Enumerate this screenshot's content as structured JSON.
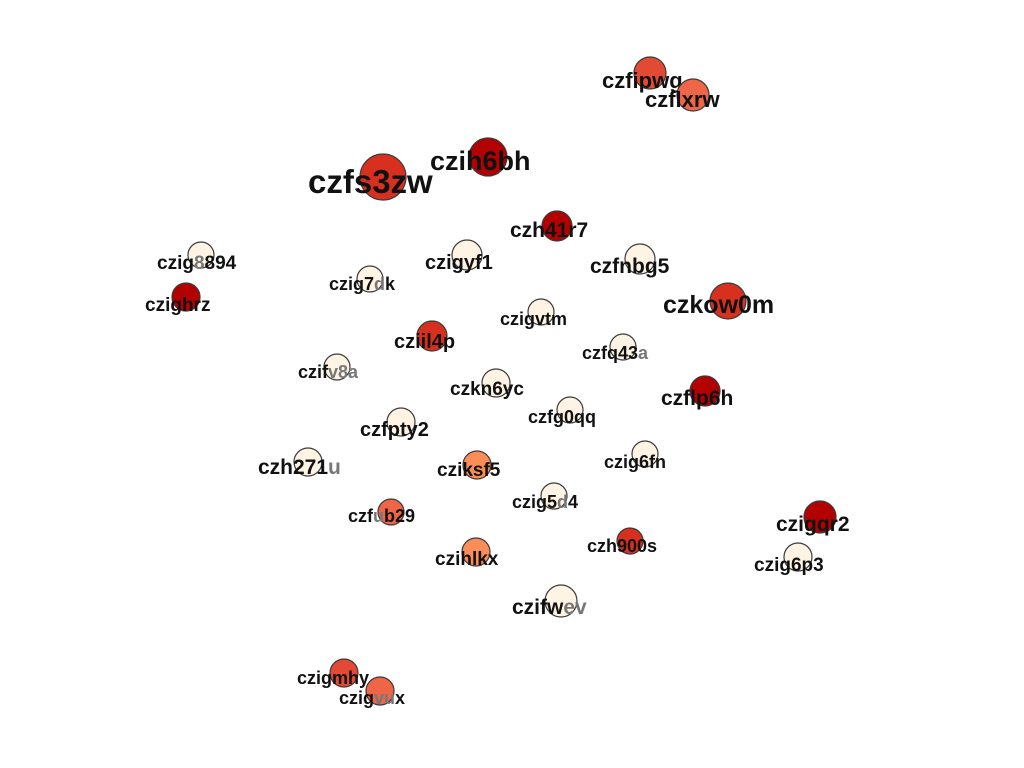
{
  "colors": {
    "dark_red": "#b30000",
    "red": "#d7301f",
    "orange_red": "#ef6548",
    "orange": "#fc8d59",
    "light_orange": "#fdbb84",
    "pale": "#fdd49e",
    "cream": "#fee8c8",
    "lightest": "#fff7ec",
    "label": "#111111",
    "label_faded": "#777777"
  },
  "nodes": [
    {
      "label_main": "czfipwg",
      "label_tail": "",
      "color": "#e34a33"
    },
    {
      "label_main": "czflxrw",
      "label_tail": "",
      "color": "#ef6548"
    },
    {
      "label_main": "czih6bh",
      "label_tail": "",
      "color": "#b30000"
    },
    {
      "label_main": "czfs3zw",
      "label_tail": "",
      "color": "#d7301f"
    },
    {
      "label_main": "czh41r7",
      "label_tail": "",
      "color": "#b30000"
    },
    {
      "label_main": "czig",
      "label_tail": "894",
      "label_mid": "8",
      "color": "#fff3e3"
    },
    {
      "label_main": "czigyf1",
      "label_tail": "",
      "color": "#fff3e3"
    },
    {
      "label_main": "czfnbg5",
      "label_tail": "",
      "color": "#fff3e3"
    },
    {
      "label_main": "czig7",
      "label_tail": "k",
      "label_mid": "d",
      "color": "#fff3e3"
    },
    {
      "label_main": "czighrz",
      "label_tail": "",
      "color": "#b30000"
    },
    {
      "label_main": "czkow0m",
      "label_tail": "",
      "color": "#d7301f"
    },
    {
      "label_main": "czigvtm",
      "label_tail": "",
      "color": "#fff3e3"
    },
    {
      "label_main": "cziil4p",
      "label_tail": "",
      "color": "#d7301f"
    },
    {
      "label_main": "czfq43",
      "label_tail": "a",
      "color": "#fff3e3"
    },
    {
      "label_main": "czif",
      "label_tail": "v8a",
      "color": "#fff3e3"
    },
    {
      "label_main": "czkn6yc",
      "label_tail": "",
      "color": "#fff3e3"
    },
    {
      "label_main": "czflp6h",
      "label_tail": "",
      "color": "#b30000"
    },
    {
      "label_main": "czfg0qq",
      "label_tail": "",
      "color": "#fff3e3"
    },
    {
      "label_main": "czfpty2",
      "label_tail": "",
      "color": "#fff3e3"
    },
    {
      "label_main": "czh271",
      "label_tail": "u",
      "color": "#fff3e3"
    },
    {
      "label_main": "cziksf5",
      "label_tail": "",
      "color": "#fc8d59"
    },
    {
      "label_main": "czig6fn",
      "label_tail": "",
      "color": "#fff3e3"
    },
    {
      "label_main": "czig5",
      "label_tail": "4",
      "label_mid": "d",
      "color": "#fff3e3"
    },
    {
      "label_main": "czf",
      "label_tail": "b29",
      "label_mid": "u",
      "color": "#ef6548"
    },
    {
      "label_main": "czigqr2",
      "label_tail": "",
      "color": "#b30000"
    },
    {
      "label_main": "czihlkx",
      "label_tail": "",
      "color": "#fc8d59"
    },
    {
      "label_main": "czh900s",
      "label_tail": "",
      "color": "#d7301f"
    },
    {
      "label_main": "czig6p3",
      "label_tail": "",
      "color": "#fff3e3"
    },
    {
      "label_main": "czifw",
      "label_tail": "ev",
      "color": "#fff3e3"
    },
    {
      "label_main": "czigmhy",
      "label_tail": "",
      "color": "#e34a33"
    },
    {
      "label_main": "czig",
      "label_tail": "x",
      "label_mid": "vu",
      "color": "#ef6548"
    }
  ]
}
